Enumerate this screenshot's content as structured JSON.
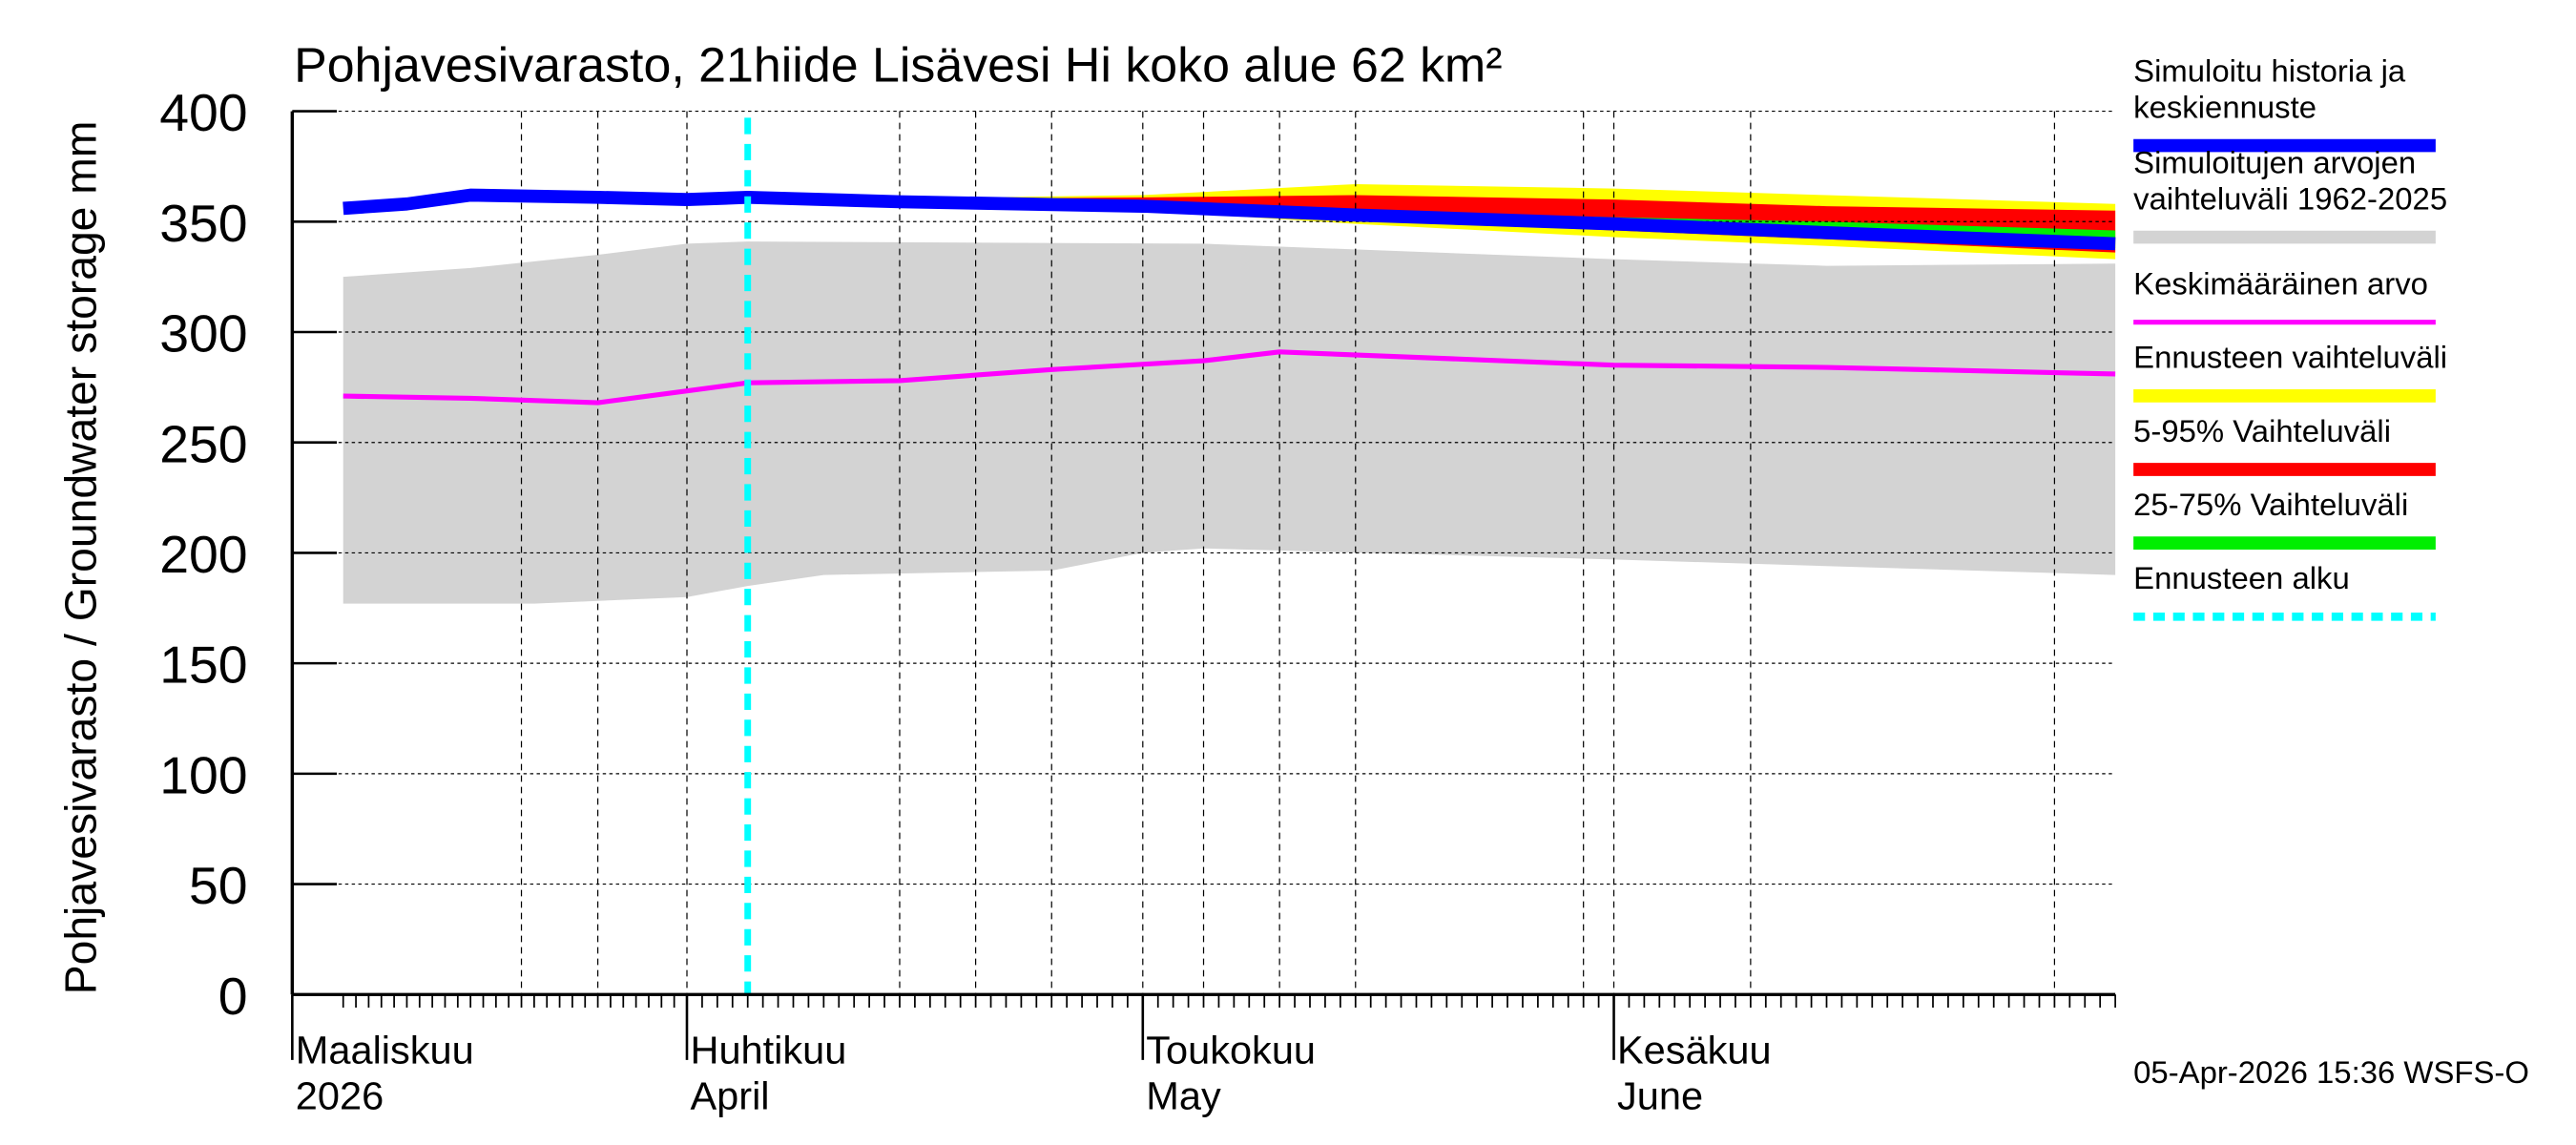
{
  "chart_data": {
    "type": "area",
    "title": "Pohjavesivarasto, 21hiide Lisävesi Hi koko alue 62 km²",
    "ylabel": "Pohjavesivarasto / Groundwater storage   mm",
    "ylim": [
      0,
      400
    ],
    "yticks": [
      0,
      50,
      100,
      150,
      200,
      250,
      300,
      350,
      400
    ],
    "xlim": [
      "2026-03-05",
      "2026-07-04"
    ],
    "xtick_labels": [
      {
        "date": "2026-03-01",
        "line1": "Maaliskuu",
        "line2": "2026"
      },
      {
        "date": "2026-04-01",
        "line1": "Huhtikuu",
        "line2": "April"
      },
      {
        "date": "2026-05-01",
        "line1": "Toukokuu",
        "line2": "May"
      },
      {
        "date": "2026-06-01",
        "line1": "Kesäkuu",
        "line2": "June"
      }
    ],
    "grid": true,
    "legend_placement": "right",
    "forecast_start": "2026-04-05",
    "timestamp": "05-Apr-2026 15:36 WSFS-O",
    "series": [
      {
        "name": "Simuloitujen arvojen vaihteluväli 1962-2025",
        "kind": "band",
        "color": "#d3d3d3",
        "upper": [
          [
            "2026-03-05",
            325
          ],
          [
            "2026-03-15",
            329
          ],
          [
            "2026-03-25",
            335
          ],
          [
            "2026-04-01",
            340
          ],
          [
            "2026-04-05",
            341
          ],
          [
            "2026-05-05",
            340
          ],
          [
            "2026-06-01",
            333
          ],
          [
            "2026-06-15",
            330
          ],
          [
            "2026-07-04",
            331
          ]
        ],
        "lower": [
          [
            "2026-03-05",
            177
          ],
          [
            "2026-03-20",
            177
          ],
          [
            "2026-04-01",
            180
          ],
          [
            "2026-04-05",
            185
          ],
          [
            "2026-04-10",
            190
          ],
          [
            "2026-04-25",
            192
          ],
          [
            "2026-05-01",
            200
          ],
          [
            "2026-05-05",
            202
          ],
          [
            "2026-06-01",
            197
          ],
          [
            "2026-07-04",
            190
          ]
        ]
      },
      {
        "name": "Ennusteen vaihteluväli",
        "kind": "band",
        "color": "#ffff00",
        "upper": [
          [
            "2026-04-10",
            360
          ],
          [
            "2026-05-01",
            362
          ],
          [
            "2026-05-15",
            367
          ],
          [
            "2026-06-01",
            365
          ],
          [
            "2026-06-15",
            362
          ],
          [
            "2026-07-04",
            358
          ]
        ],
        "lower": [
          [
            "2026-04-10",
            359
          ],
          [
            "2026-05-01",
            355
          ],
          [
            "2026-05-15",
            349
          ],
          [
            "2026-06-01",
            343
          ],
          [
            "2026-06-15",
            339
          ],
          [
            "2026-07-04",
            333
          ]
        ]
      },
      {
        "name": "5-95% Vaihteluväli",
        "kind": "band",
        "color": "#ff0000",
        "upper": [
          [
            "2026-04-10",
            360
          ],
          [
            "2026-05-01",
            361
          ],
          [
            "2026-05-15",
            362
          ],
          [
            "2026-06-01",
            360
          ],
          [
            "2026-06-15",
            357
          ],
          [
            "2026-07-04",
            355
          ]
        ],
        "lower": [
          [
            "2026-04-10",
            359
          ],
          [
            "2026-05-01",
            356
          ],
          [
            "2026-05-15",
            351
          ],
          [
            "2026-06-01",
            346
          ],
          [
            "2026-06-15",
            342
          ],
          [
            "2026-07-04",
            336
          ]
        ]
      },
      {
        "name": "25-75% Vaihteluväli",
        "kind": "band",
        "color": "#00ee00",
        "upper": [
          [
            "2026-04-10",
            359
          ],
          [
            "2026-05-01",
            357
          ],
          [
            "2026-05-15",
            355
          ],
          [
            "2026-06-01",
            352
          ],
          [
            "2026-06-15",
            350
          ],
          [
            "2026-07-04",
            346
          ]
        ],
        "lower": [
          [
            "2026-04-10",
            359
          ],
          [
            "2026-05-01",
            356.5
          ],
          [
            "2026-05-15",
            352
          ],
          [
            "2026-06-01",
            347
          ],
          [
            "2026-06-15",
            343
          ],
          [
            "2026-07-04",
            338
          ]
        ]
      },
      {
        "name": "Keskimääräinen arvo",
        "kind": "line",
        "color": "#ff00ff",
        "values": [
          [
            "2026-03-05",
            271
          ],
          [
            "2026-03-15",
            270
          ],
          [
            "2026-03-25",
            268
          ],
          [
            "2026-04-05",
            277
          ],
          [
            "2026-04-15",
            278
          ],
          [
            "2026-04-25",
            283
          ],
          [
            "2026-05-05",
            287
          ],
          [
            "2026-05-10",
            291
          ],
          [
            "2026-06-01",
            285
          ],
          [
            "2026-06-15",
            284
          ],
          [
            "2026-07-04",
            281
          ]
        ]
      },
      {
        "name": "Simuloitu historia ja keskiennuste",
        "kind": "line",
        "color": "#0000ff",
        "values": [
          [
            "2026-03-05",
            356
          ],
          [
            "2026-03-10",
            358
          ],
          [
            "2026-03-15",
            362
          ],
          [
            "2026-03-25",
            361
          ],
          [
            "2026-04-01",
            360
          ],
          [
            "2026-04-05",
            361
          ],
          [
            "2026-04-15",
            359
          ],
          [
            "2026-05-01",
            357
          ],
          [
            "2026-05-15",
            353
          ],
          [
            "2026-06-01",
            349
          ],
          [
            "2026-06-15",
            345
          ],
          [
            "2026-07-04",
            340
          ]
        ]
      }
    ],
    "legend": [
      {
        "label1": "Simuloitu historia ja",
        "label2": "keskiennuste",
        "color": "#0000ff",
        "style": "thick"
      },
      {
        "label1": "Simuloitujen arvojen",
        "label2": "vaihteluväli 1962-2025",
        "color": "#d3d3d3",
        "style": "thick"
      },
      {
        "label1": "Keskimääräinen arvo",
        "label2": "",
        "color": "#ff00ff",
        "style": "thin"
      },
      {
        "label1": "Ennusteen vaihteluväli",
        "label2": "",
        "color": "#ffff00",
        "style": "thick"
      },
      {
        "label1": "5-95% Vaihteluväli",
        "label2": "",
        "color": "#ff0000",
        "style": "thick"
      },
      {
        "label1": "25-75% Vaihteluväli",
        "label2": "",
        "color": "#00ee00",
        "style": "thick"
      },
      {
        "label1": "Ennusteen alku",
        "label2": "",
        "color": "#00ffff",
        "style": "dotted"
      }
    ]
  }
}
